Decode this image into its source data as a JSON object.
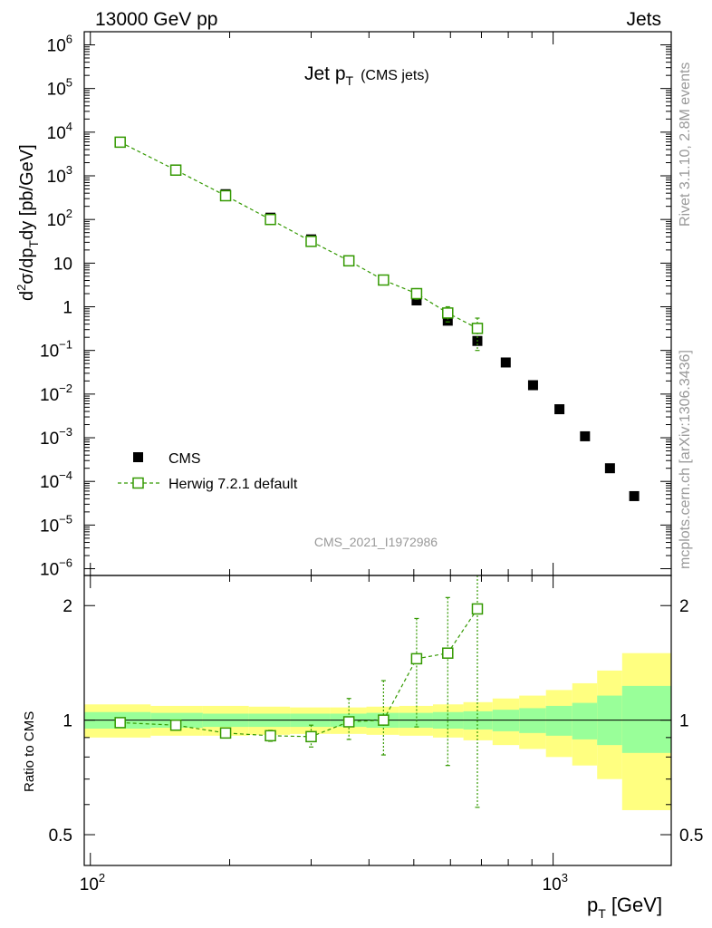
{
  "header": {
    "left": "13000 GeV pp",
    "right": "Jets"
  },
  "side_labels": {
    "rivet": "Rivet 3.1.10,  2.8M events",
    "mcplots": "mcplots.cern.ch [arXiv:1306.3436]"
  },
  "watermark": "CMS_2021_I1972986",
  "chart_data": [
    {
      "type": "scatter",
      "title_main": "Jet p",
      "title_sub": "T",
      "title_extra": "(CMS jets)",
      "ylabel": "d²σ/dp_T dy [pb/GeV]",
      "xscale": "log",
      "yscale": "log",
      "xlim": [
        97,
        1800
      ],
      "ylim": [
        7e-07,
        2000000.0
      ],
      "y_ticks": [
        {
          "v": 1000000.0,
          "base": "10",
          "exp": "6"
        },
        {
          "v": 100000.0,
          "base": "10",
          "exp": "5"
        },
        {
          "v": 10000.0,
          "base": "10",
          "exp": "4"
        },
        {
          "v": 1000.0,
          "base": "10",
          "exp": "3"
        },
        {
          "v": 100.0,
          "base": "10",
          "exp": "2"
        },
        {
          "v": 10,
          "base": "10",
          "exp": ""
        },
        {
          "v": 1,
          "base": "1",
          "exp": ""
        },
        {
          "v": 0.1,
          "base": "10",
          "exp": "−1"
        },
        {
          "v": 0.01,
          "base": "10",
          "exp": "−2"
        },
        {
          "v": 0.001,
          "base": "10",
          "exp": "−3"
        },
        {
          "v": 0.0001,
          "base": "10",
          "exp": "−4"
        },
        {
          "v": 1e-05,
          "base": "10",
          "exp": "−5"
        },
        {
          "v": 1e-06,
          "base": "10",
          "exp": "−6"
        }
      ],
      "legend_position": "bottom-left",
      "series": [
        {
          "name": "CMS",
          "style": "filled-square",
          "color": "#000000",
          "x": [
            116,
            153,
            196,
            245,
            300,
            362,
            430,
            507,
            592,
            686,
            790,
            905,
            1032,
            1172,
            1327,
            1497
          ],
          "y": [
            6000,
            1400,
            380,
            110,
            35,
            11.5,
            4.2,
            1.4,
            0.48,
            0.165,
            0.053,
            0.016,
            0.0045,
            0.00108,
            0.0002,
            4.6e-05
          ],
          "yerr_high": [
            6300,
            1450,
            395,
            115,
            37,
            12,
            4.4,
            1.5,
            0.55,
            0.2,
            0.058,
            0.0175,
            0.005,
            0.0012,
            0.00023,
            5.4e-05
          ],
          "yerr_low": [
            5700,
            1350,
            365,
            105,
            33,
            11,
            4.0,
            1.3,
            0.42,
            0.135,
            0.048,
            0.0145,
            0.004,
            0.00096,
            0.00017,
            3.8e-05
          ]
        },
        {
          "name": "Herwig 7.2.1 default",
          "style": "open-square-dashed",
          "color": "#339900",
          "x": [
            116,
            153,
            196,
            245,
            300,
            362,
            430,
            507,
            592,
            686
          ],
          "y": [
            5900,
            1350,
            350,
            100,
            31.5,
            11.3,
            4.1,
            2.0,
            0.72,
            0.32
          ],
          "yerr_high": [
            6000,
            1380,
            360,
            104,
            33,
            12,
            4.5,
            2.6,
            1.0,
            0.55
          ],
          "yerr_low": [
            5800,
            1320,
            340,
            96,
            30,
            10.6,
            3.7,
            1.5,
            0.45,
            0.1
          ]
        }
      ]
    },
    {
      "type": "scatter",
      "ylabel": "Ratio to CMS",
      "xlabel_main": "p",
      "xlabel_sub": "T",
      "xlabel_unit": "[GeV]",
      "xscale": "log",
      "yscale": "log",
      "xlim": [
        97,
        1800
      ],
      "ylim": [
        0.415,
        2.4
      ],
      "y_ticks": [
        {
          "v": 0.5,
          "label": "0.5"
        },
        {
          "v": 1,
          "label": "1"
        },
        {
          "v": 2,
          "label": "2"
        }
      ],
      "x_ticks": [
        {
          "v": 100,
          "base": "10",
          "exp": "2"
        },
        {
          "v": 1000,
          "base": "10",
          "exp": "3"
        }
      ],
      "bands": {
        "edges": [
          97,
          135,
          175,
          220,
          270,
          330,
          395,
          465,
          550,
          640,
          740,
          845,
          965,
          1100,
          1245,
          1410,
          1800
        ],
        "green_low": [
          0.95,
          0.955,
          0.96,
          0.96,
          0.96,
          0.96,
          0.955,
          0.955,
          0.95,
          0.945,
          0.935,
          0.925,
          0.91,
          0.89,
          0.86,
          0.82
        ],
        "green_high": [
          1.05,
          1.045,
          1.04,
          1.04,
          1.04,
          1.04,
          1.045,
          1.045,
          1.05,
          1.055,
          1.065,
          1.075,
          1.09,
          1.11,
          1.16,
          1.23
        ],
        "yellow_low": [
          0.9,
          0.91,
          0.91,
          0.915,
          0.92,
          0.92,
          0.915,
          0.91,
          0.9,
          0.885,
          0.86,
          0.84,
          0.8,
          0.76,
          0.7,
          0.58
        ],
        "yellow_high": [
          1.1,
          1.09,
          1.09,
          1.085,
          1.08,
          1.08,
          1.085,
          1.09,
          1.1,
          1.115,
          1.14,
          1.16,
          1.2,
          1.25,
          1.35,
          1.5
        ]
      },
      "series": [
        {
          "name": "Herwig 7.2.1 default",
          "color": "#339900",
          "x": [
            116,
            153,
            196,
            245,
            300,
            362,
            430,
            507,
            592,
            686
          ],
          "y": [
            0.985,
            0.97,
            0.925,
            0.91,
            0.905,
            0.99,
            1.0,
            1.45,
            1.5,
            1.96
          ],
          "yerr_high": [
            0.99,
            0.975,
            0.935,
            0.94,
            0.97,
            1.14,
            1.27,
            1.85,
            2.1,
            2.4
          ],
          "yerr_low": [
            0.98,
            0.965,
            0.915,
            0.88,
            0.85,
            0.89,
            0.81,
            0.96,
            0.76,
            0.59
          ]
        }
      ]
    }
  ]
}
